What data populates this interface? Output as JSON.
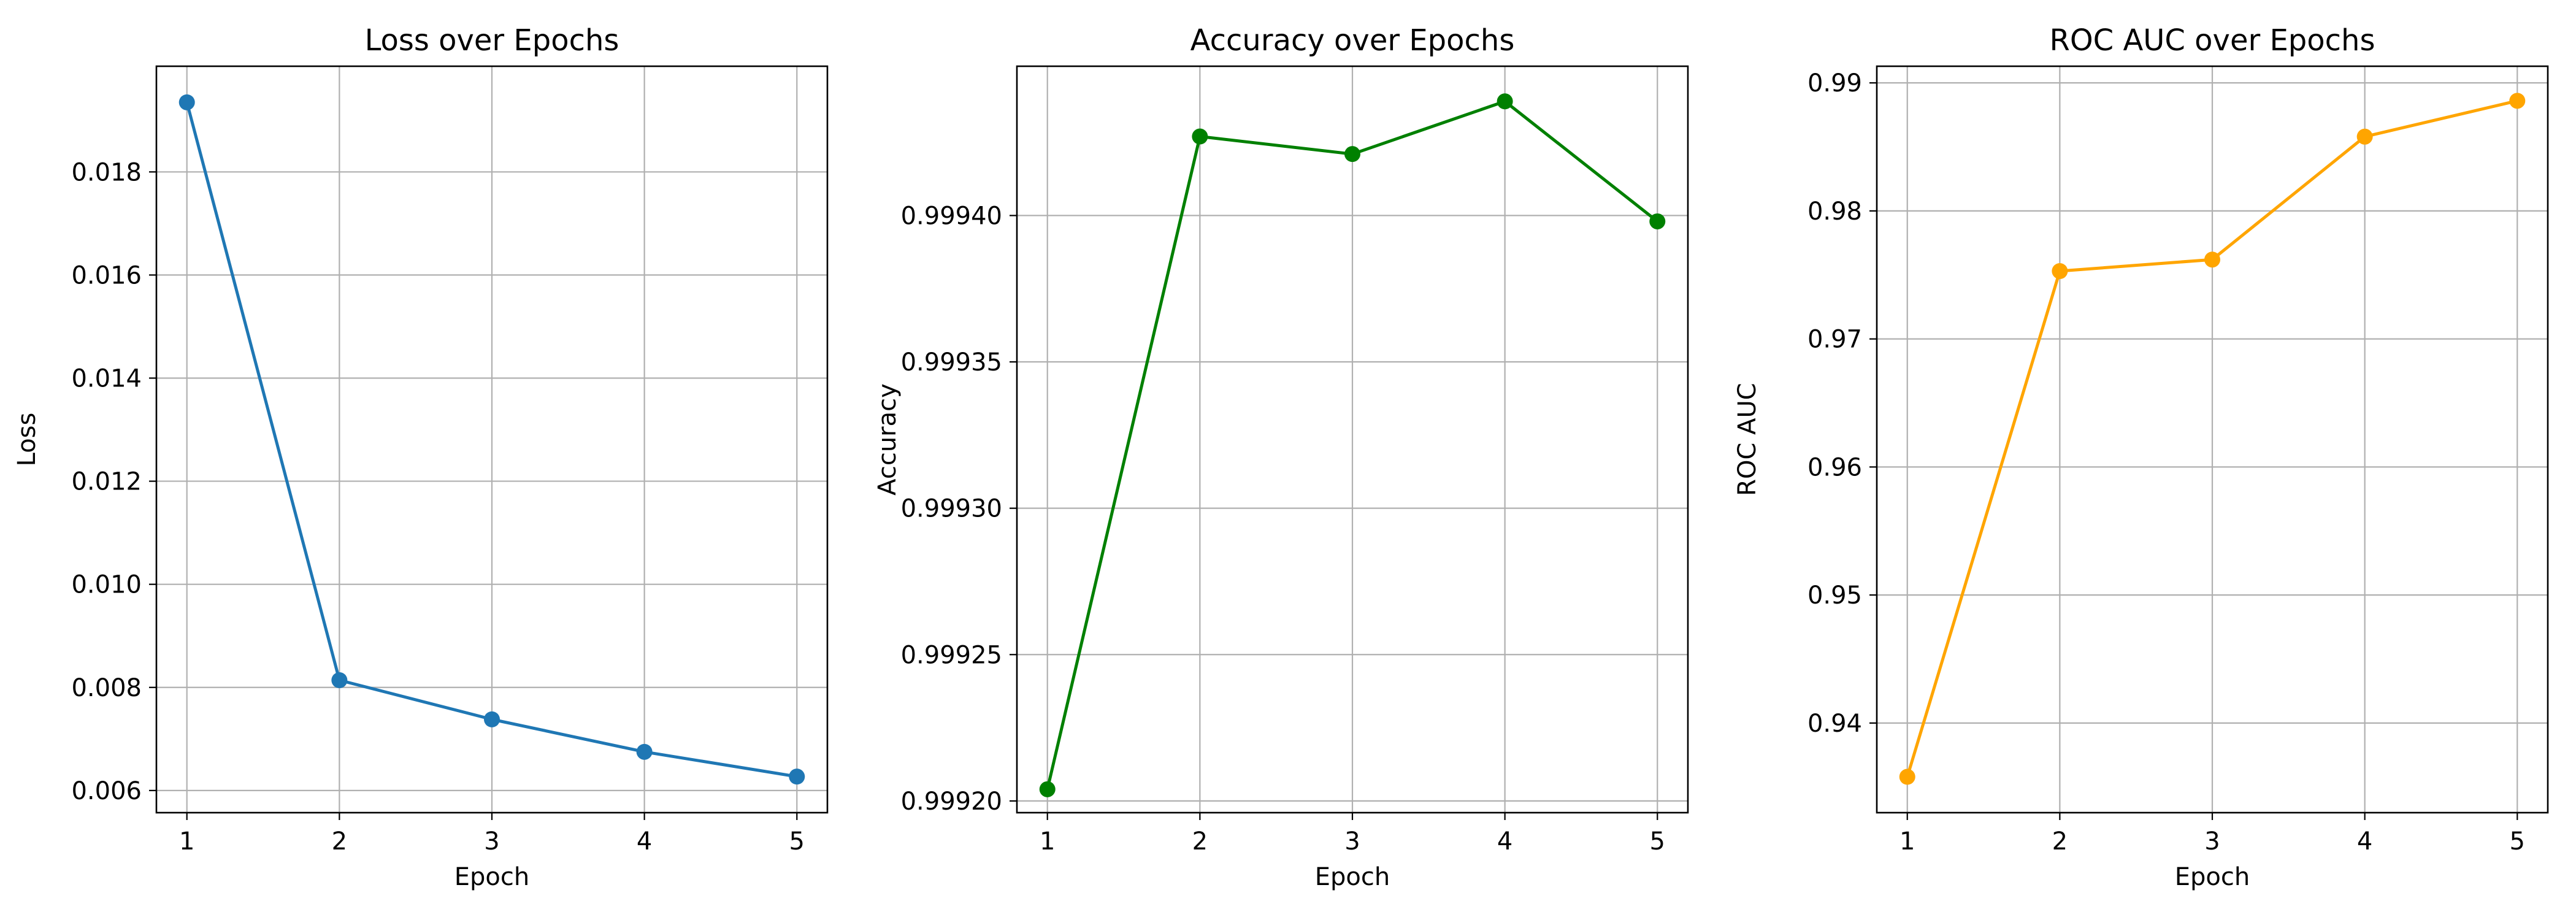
{
  "chart_data": [
    {
      "type": "line",
      "title": "Loss over Epochs",
      "xlabel": "Epoch",
      "ylabel": "Loss",
      "x": [
        1,
        2,
        3,
        4,
        5
      ],
      "series": [
        {
          "values": [
            0.01935,
            0.00814,
            0.00738,
            0.00675,
            0.00627
          ],
          "color": "#1f77b4",
          "marker": "circle"
        }
      ],
      "xlim": [
        0.8,
        5.2
      ],
      "ylim": [
        0.00557,
        0.02005
      ],
      "xticks": [
        "1",
        "2",
        "3",
        "4",
        "5"
      ],
      "yticks": [
        0.006,
        0.008,
        0.01,
        0.012,
        0.014,
        0.016,
        0.018
      ],
      "ytick_labels": [
        "0.006",
        "0.008",
        "0.010",
        "0.012",
        "0.014",
        "0.016",
        "0.018"
      ],
      "grid": true
    },
    {
      "type": "line",
      "title": "Accuracy over Epochs",
      "xlabel": "Epoch",
      "ylabel": "Accuracy",
      "x": [
        1,
        2,
        3,
        4,
        5
      ],
      "series": [
        {
          "values": [
            0.999204,
            0.999427,
            0.999421,
            0.999439,
            0.999398
          ],
          "color": "#008000",
          "marker": "circle"
        }
      ],
      "xlim": [
        0.8,
        5.2
      ],
      "ylim": [
        0.999196,
        0.999451
      ],
      "xticks": [
        "1",
        "2",
        "3",
        "4",
        "5"
      ],
      "yticks": [
        0.9992,
        0.99925,
        0.9993,
        0.99935,
        0.9994
      ],
      "ytick_labels": [
        "0.99920",
        "0.99925",
        "0.99930",
        "0.99935",
        "0.99940"
      ],
      "grid": true
    },
    {
      "type": "line",
      "title": "ROC AUC over Epochs",
      "xlabel": "Epoch",
      "ylabel": "ROC AUC",
      "x": [
        1,
        2,
        3,
        4,
        5
      ],
      "series": [
        {
          "values": [
            0.9358,
            0.9753,
            0.9762,
            0.9858,
            0.9886
          ],
          "color": "#ffa500",
          "marker": "circle"
        }
      ],
      "xlim": [
        0.8,
        5.2
      ],
      "ylim": [
        0.933,
        0.9913
      ],
      "xticks": [
        "1",
        "2",
        "3",
        "4",
        "5"
      ],
      "yticks": [
        0.94,
        0.95,
        0.96,
        0.97,
        0.98,
        0.99
      ],
      "ytick_labels": [
        "0.94",
        "0.95",
        "0.96",
        "0.97",
        "0.98",
        "0.99"
      ],
      "grid": true
    }
  ]
}
